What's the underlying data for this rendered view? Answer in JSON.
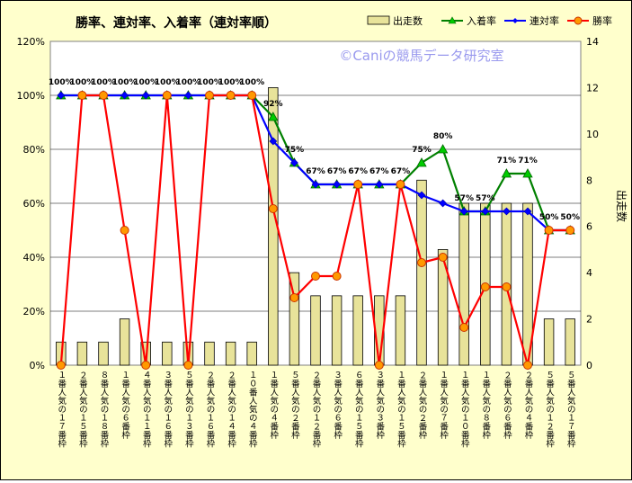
{
  "chart_data": {
    "type": "bar+line",
    "title": "勝率、連対率、入着率（連対率順）",
    "watermark": "©Caniの競馬データ研究室",
    "y2label": "出走数",
    "ylim": [
      0,
      120
    ],
    "yticks": [
      "0%",
      "20%",
      "40%",
      "60%",
      "80%",
      "100%",
      "120%"
    ],
    "y2lim": [
      0,
      14
    ],
    "y2ticks": [
      "0",
      "2",
      "4",
      "6",
      "8",
      "10",
      "12",
      "14"
    ],
    "categories": [
      "１番人気の１７番枠",
      "２番人気の１５番枠",
      "８番人気の１８番枠",
      "１番人気の６番枠",
      "４番人気の１１番枠",
      "３番人気の１６番枠",
      "５番人気の１３番枠",
      "２番人気の１６番枠",
      "２番人気の１４番枠",
      "１０番人気の４番枠",
      "１番人気の４番枠",
      "５番人気の２番枠",
      "２番人気の１２番枠",
      "３番人気の６番枠",
      "６番人気の１５番枠",
      "３番人気の３番枠",
      "１番人気の１５番枠",
      "２番人気の２番枠",
      "１番人気の７番枠",
      "１番人気の１０番枠",
      "１番人気の８番枠",
      "２番人気の６番枠",
      "２番人気の４番枠",
      "５番人気の１２番枠",
      "５番人気の１７番枠"
    ],
    "legend": [
      "出走数",
      "入着率",
      "連対率",
      "勝率"
    ],
    "legend_position": "top-right",
    "grid": "horizontal",
    "series": [
      {
        "name": "出走数",
        "type": "bar",
        "axis": "y2",
        "color": "#e8e39a",
        "values": [
          1,
          1,
          1,
          2,
          1,
          1,
          1,
          1,
          1,
          1,
          12,
          4,
          3,
          3,
          3,
          3,
          3,
          8,
          5,
          7,
          7,
          7,
          7,
          2,
          2
        ]
      },
      {
        "name": "入着率",
        "type": "line",
        "axis": "y",
        "color": "#008000",
        "values": [
          100,
          100,
          100,
          100,
          100,
          100,
          100,
          100,
          100,
          100,
          92,
          75,
          67,
          67,
          67,
          67,
          67,
          75,
          80,
          57,
          57,
          71,
          71,
          50,
          50
        ]
      },
      {
        "name": "連対率",
        "type": "line",
        "axis": "y",
        "color": "#0000ff",
        "values": [
          100,
          100,
          100,
          100,
          100,
          100,
          100,
          100,
          100,
          100,
          83,
          75,
          67,
          67,
          67,
          67,
          67,
          63,
          60,
          57,
          57,
          57,
          57,
          50,
          50
        ]
      },
      {
        "name": "勝率",
        "type": "line",
        "axis": "y",
        "color": "#ff0000",
        "values": [
          0,
          100,
          100,
          50,
          0,
          100,
          0,
          100,
          100,
          100,
          58,
          25,
          33,
          33,
          67,
          0,
          67,
          38,
          40,
          14,
          29,
          29,
          0,
          50,
          50
        ]
      }
    ],
    "data_labels": [
      "100%",
      "100%",
      "100%",
      "100%",
      "100%",
      "100%",
      "100%",
      "100%",
      "100%",
      "100%",
      "92%",
      "75%",
      "67%",
      "67%",
      "67%",
      "67%",
      "67%",
      "75%",
      "80%",
      "57%",
      "57%",
      "71%",
      "71%",
      "50%",
      "50%"
    ]
  }
}
